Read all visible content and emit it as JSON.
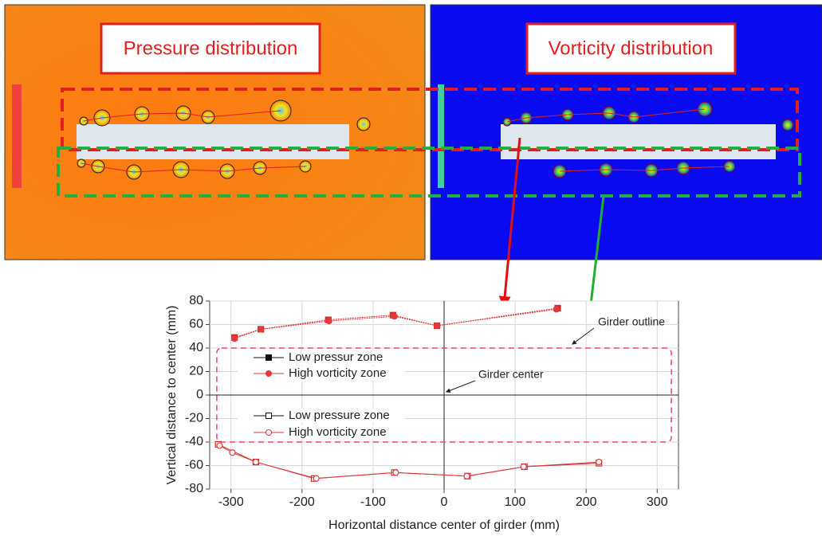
{
  "panels": [
    {
      "title": "Pressure distribution"
    },
    {
      "title": "Vorticity distribution"
    }
  ],
  "chart_data": {
    "type": "line",
    "x_label": "Horizontal distance center of girder (mm)",
    "y_label": "Vertical distance to center (mm)",
    "xlim": [
      -330,
      330
    ],
    "xticks": [
      -300,
      -200,
      -100,
      0,
      100,
      200,
      300
    ],
    "ylim": [
      -80,
      80
    ],
    "yticks": [
      -80,
      -60,
      -40,
      -20,
      0,
      20,
      40,
      60,
      80
    ],
    "series": [
      {
        "name": "Low pressur zone",
        "color": "#d42a2a",
        "marker": "square",
        "filled": true,
        "x": [
          -295,
          -258,
          -163,
          -72,
          -10,
          160
        ],
        "values": [
          49,
          56,
          64,
          68,
          59,
          74
        ]
      },
      {
        "name": "High vorticity zone",
        "color": "#e03a3a",
        "marker": "circle",
        "filled": true,
        "x": [
          -295,
          -258,
          -162,
          -70,
          -10,
          158
        ],
        "values": [
          48,
          56,
          63,
          67,
          59,
          73
        ]
      },
      {
        "name": "Low pressure zone",
        "color": "#d42a2a",
        "marker": "square",
        "filled": false,
        "x": [
          -318,
          -265,
          -183,
          -70,
          33,
          113,
          218
        ],
        "values": [
          -42,
          -57,
          -71,
          -66,
          -69,
          -61,
          -58
        ]
      },
      {
        "name": "High vorticity zone",
        "color": "#e03a3a",
        "marker": "circle",
        "filled": false,
        "x": [
          -316,
          -298,
          -265,
          -180,
          -68,
          32,
          112,
          218
        ],
        "values": [
          -43,
          -49,
          -57,
          -71,
          -66,
          -69,
          -61,
          -57
        ]
      }
    ],
    "girder_outline": {
      "label": "Girder outline",
      "x": [
        -320,
        320
      ],
      "y": [
        -40,
        40
      ]
    },
    "girder_center_label": "Girder center"
  }
}
